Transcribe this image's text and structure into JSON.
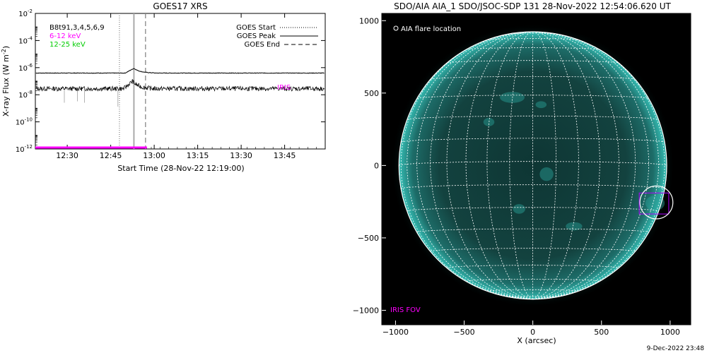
{
  "chart_data": [
    {
      "type": "line",
      "title": "GOES17 XRS",
      "xlabel": "Start Time (28-Nov-22 12:19:00)",
      "ylabel_prefix": "X-ray Flux (W m",
      "ylabel_exp": "-2",
      "ylabel_suffix": ")",
      "y_scale": "log",
      "x_range_minutes_from_start": [
        0,
        100
      ],
      "ylim_exponent": [
        -12,
        -2
      ],
      "x_ticks": [
        {
          "label": "12:30",
          "min": 11
        },
        {
          "label": "12:45",
          "min": 26
        },
        {
          "label": "13:00",
          "min": 41
        },
        {
          "label": "13:15",
          "min": 56
        },
        {
          "label": "13:30",
          "min": 71
        },
        {
          "label": "13:45",
          "min": 86
        }
      ],
      "y_ticks": [
        {
          "base": "10",
          "exp": "-12",
          "value_exp": -12
        },
        {
          "base": "10",
          "exp": "-10",
          "value_exp": -10
        },
        {
          "base": "10",
          "exp": "-8",
          "value_exp": -8
        },
        {
          "base": "10",
          "exp": "-6",
          "value_exp": -6
        },
        {
          "base": "10",
          "exp": "-4",
          "value_exp": -4
        },
        {
          "base": "10",
          "exp": "-2",
          "value_exp": -2
        }
      ],
      "channel_labels": [
        {
          "text": "B8t91,3,4,5,6,9",
          "color": "#000000"
        },
        {
          "text": "6-12 keV",
          "color": "#ff00ff"
        },
        {
          "text": "12-25 keV",
          "color": "#00cc00"
        }
      ],
      "legend": [
        {
          "name": "GOES Start",
          "style": "dotted"
        },
        {
          "name": "GOES Peak",
          "style": "solid"
        },
        {
          "name": "GOES End",
          "style": "dashed"
        }
      ],
      "legend_position": "top-right",
      "event_lines": [
        {
          "name": "GOES Start",
          "min": 29,
          "style": "dotted"
        },
        {
          "name": "GOES Peak",
          "min": 34,
          "style": "solid"
        },
        {
          "name": "GOES End",
          "min": 38,
          "style": "dashed"
        }
      ],
      "series": [
        {
          "channel": "long",
          "baseline_exp": -6.4,
          "peak_exp": -6.05,
          "peak_min": 34
        },
        {
          "channel": "short",
          "baseline_exp": -7.55,
          "peak_exp": -7.0,
          "peak_min": 33.5
        }
      ],
      "iris_label": "IRIS",
      "iris_label_color": "#ff00ff",
      "iris_bar": {
        "start_min": 0,
        "end_min": 38.5,
        "value_exp": -12,
        "color": "#ff00ff"
      }
    },
    {
      "type": "image",
      "title": "SDO/AIA AIA_1 SDO/JSOC-SDP 131 28-Nov-2022 12:54:06.620 UT",
      "xlabel": "X (arcsec)",
      "xlim": [
        -1100,
        1150
      ],
      "ylim": [
        -1100,
        1050
      ],
      "x_ticks": [
        "−1000",
        "−500",
        "0",
        "500",
        "1000"
      ],
      "x_tick_values": [
        -1000,
        -500,
        0,
        500,
        1000
      ],
      "y_ticks": [
        "1000",
        "500",
        "0",
        "−500",
        "−1000"
      ],
      "y_tick_values": [
        1000,
        500,
        0,
        -500,
        -1000
      ],
      "solar_radius_arcsec": 975,
      "legend_label": "AIA flare location",
      "flare_location": {
        "x": 900,
        "y": -255,
        "radius": 120
      },
      "iris_fov": {
        "x_range": [
          775,
          990
        ],
        "y_range": [
          -335,
          -190
        ],
        "color": "#b000ff"
      },
      "iris_fov_label": "IRIS FOV",
      "iris_fov_color": "#ff00ff",
      "disk_color": "#1f7d79",
      "limb_color": "#2fc7be"
    }
  ],
  "footer": {
    "timestamp": "9-Dec-2022 23:48"
  }
}
